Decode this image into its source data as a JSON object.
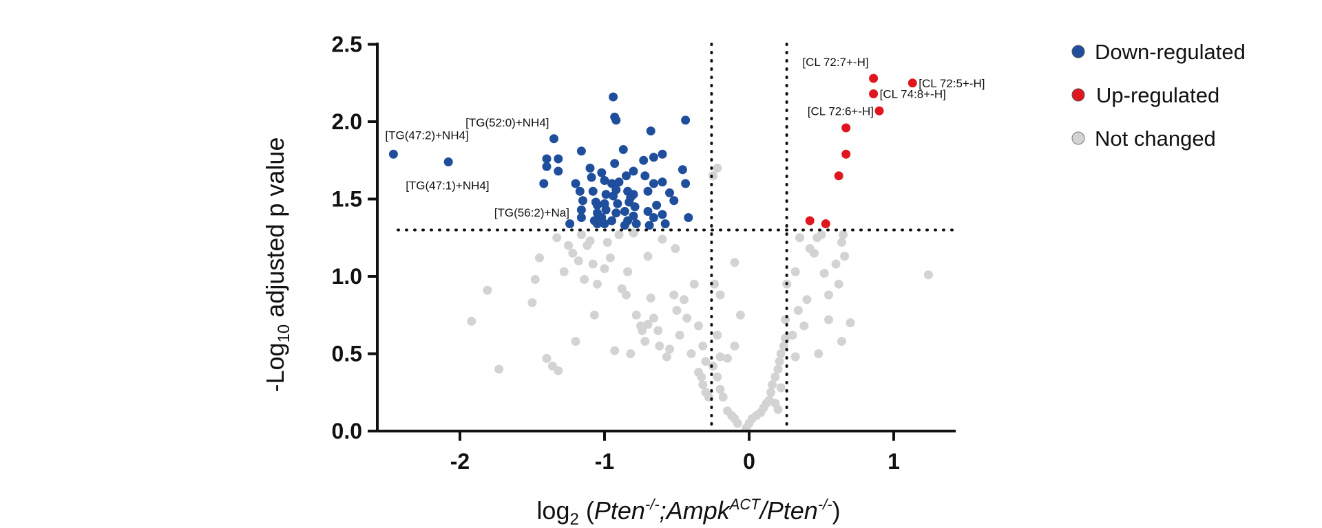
{
  "chart_data": {
    "type": "scatter",
    "xlabel": {
      "prefix": "log",
      "sub": "2",
      "open": " (",
      "gene1": "Pten",
      "gene1_sup": "-/-",
      "sep": ";",
      "gene2": "Ampk",
      "gene2_sup": "ACT",
      "slash": "/",
      "gene3": "Pten",
      "gene3_sup": "-/-",
      "close": ")"
    },
    "ylabel": {
      "prefix": "-Log",
      "sub": "10",
      "rest": " adjusted p value"
    },
    "xlim": [
      -2.6,
      1.4
    ],
    "ylim": [
      0,
      2.5
    ],
    "x_ticks": [
      -2,
      -1,
      0,
      1
    ],
    "x_tick_labels": [
      "-2",
      "-1",
      "0",
      "1"
    ],
    "y_ticks": [
      0.0,
      0.5,
      1.0,
      1.5,
      2.0,
      2.5
    ],
    "y_tick_labels": [
      "0.0",
      "0.5",
      "1.0",
      "1.5",
      "2.0",
      "2.5"
    ],
    "thresholds": {
      "x": [
        -0.26,
        0.26
      ],
      "y": 1.3
    },
    "grid": false,
    "legend_position": "top-right",
    "series": [
      {
        "name": "Down-regulated",
        "color": "#1f4e9c",
        "points": [
          [
            -2.46,
            1.79
          ],
          [
            -2.08,
            1.74
          ],
          [
            -1.35,
            1.89
          ],
          [
            -1.4,
            1.76
          ],
          [
            -1.32,
            1.76
          ],
          [
            -1.4,
            1.71
          ],
          [
            -1.32,
            1.68
          ],
          [
            -1.42,
            1.6
          ],
          [
            -1.16,
            1.81
          ],
          [
            -1.2,
            1.6
          ],
          [
            -1.17,
            1.55
          ],
          [
            -1.15,
            1.49
          ],
          [
            -1.16,
            1.43
          ],
          [
            -1.16,
            1.38
          ],
          [
            -1.24,
            1.34
          ],
          [
            -1.1,
            1.7
          ],
          [
            -1.09,
            1.64
          ],
          [
            -1.08,
            1.55
          ],
          [
            -1.06,
            1.48
          ],
          [
            -1.05,
            1.46
          ],
          [
            -1.05,
            1.41
          ],
          [
            -1.07,
            1.36
          ],
          [
            -1.05,
            1.34
          ],
          [
            -1.02,
            1.67
          ],
          [
            -1.0,
            1.62
          ],
          [
            -0.99,
            1.53
          ],
          [
            -1.0,
            1.47
          ],
          [
            -0.99,
            1.43
          ],
          [
            -1.02,
            1.38
          ],
          [
            -1.0,
            1.34
          ],
          [
            -0.94,
            2.16
          ],
          [
            -0.93,
            2.03
          ],
          [
            -0.92,
            2.01
          ],
          [
            -0.93,
            1.73
          ],
          [
            -0.95,
            1.6
          ],
          [
            -0.92,
            1.56
          ],
          [
            -0.94,
            1.52
          ],
          [
            -0.91,
            1.47
          ],
          [
            -0.92,
            1.41
          ],
          [
            -0.95,
            1.36
          ],
          [
            -0.9,
            1.61
          ],
          [
            -0.87,
            1.82
          ],
          [
            -0.85,
            1.65
          ],
          [
            -0.84,
            1.55
          ],
          [
            -0.82,
            1.51
          ],
          [
            -0.83,
            1.48
          ],
          [
            -0.86,
            1.42
          ],
          [
            -0.84,
            1.36
          ],
          [
            -0.86,
            1.33
          ],
          [
            -0.8,
            1.68
          ],
          [
            -0.8,
            1.53
          ],
          [
            -0.79,
            1.45
          ],
          [
            -0.8,
            1.39
          ],
          [
            -0.78,
            1.34
          ],
          [
            -0.72,
            1.65
          ],
          [
            -0.7,
            1.55
          ],
          [
            -0.7,
            1.42
          ],
          [
            -0.69,
            1.33
          ],
          [
            -0.73,
            1.75
          ],
          [
            -0.68,
            1.94
          ],
          [
            -0.66,
            1.77
          ],
          [
            -0.66,
            1.6
          ],
          [
            -0.64,
            1.46
          ],
          [
            -0.66,
            1.38
          ],
          [
            -0.6,
            1.79
          ],
          [
            -0.6,
            1.61
          ],
          [
            -0.6,
            1.4
          ],
          [
            -0.58,
            1.34
          ],
          [
            -0.55,
            1.54
          ],
          [
            -0.52,
            1.49
          ],
          [
            -0.44,
            2.01
          ],
          [
            -0.46,
            1.69
          ],
          [
            -0.44,
            1.6
          ],
          [
            -0.42,
            1.38
          ]
        ]
      },
      {
        "name": "Up-regulated",
        "color": "#e0161e",
        "points": [
          [
            0.42,
            1.36
          ],
          [
            0.53,
            1.34
          ],
          [
            0.62,
            1.65
          ],
          [
            0.67,
            1.79
          ],
          [
            0.67,
            1.96
          ],
          [
            0.9,
            2.07
          ],
          [
            0.86,
            2.18
          ],
          [
            0.86,
            2.28
          ],
          [
            1.13,
            2.25
          ]
        ]
      },
      {
        "name": "Not changed",
        "color": "#d3d3d3",
        "points": [
          [
            -1.92,
            0.71
          ],
          [
            -1.81,
            0.91
          ],
          [
            -1.73,
            0.4
          ],
          [
            -1.5,
            0.83
          ],
          [
            -1.48,
            0.98
          ],
          [
            -1.45,
            1.12
          ],
          [
            -1.4,
            0.47
          ],
          [
            -1.36,
            0.42
          ],
          [
            -1.32,
            0.39
          ],
          [
            -1.33,
            1.25
          ],
          [
            -1.28,
            1.03
          ],
          [
            -1.25,
            1.2
          ],
          [
            -1.22,
            1.15
          ],
          [
            -1.2,
            0.58
          ],
          [
            -1.18,
            1.1
          ],
          [
            -1.16,
            1.27
          ],
          [
            -1.14,
            0.98
          ],
          [
            -1.12,
            1.2
          ],
          [
            -1.1,
            1.23
          ],
          [
            -1.08,
            1.08
          ],
          [
            -1.07,
            0.75
          ],
          [
            -1.05,
            0.95
          ],
          [
            -1.0,
            1.05
          ],
          [
            -0.98,
            1.22
          ],
          [
            -0.96,
            1.12
          ],
          [
            -0.93,
            0.52
          ],
          [
            -0.9,
            1.27
          ],
          [
            -0.88,
            0.92
          ],
          [
            -0.85,
            0.88
          ],
          [
            -0.84,
            1.03
          ],
          [
            -0.82,
            0.5
          ],
          [
            -0.8,
            1.28
          ],
          [
            -0.78,
            0.75
          ],
          [
            -0.75,
            0.68
          ],
          [
            -0.74,
            0.65
          ],
          [
            -0.72,
            0.58
          ],
          [
            -0.7,
            0.69
          ],
          [
            -0.7,
            1.13
          ],
          [
            -0.68,
            0.86
          ],
          [
            -0.66,
            0.73
          ],
          [
            -0.63,
            0.65
          ],
          [
            -0.62,
            0.55
          ],
          [
            -0.6,
            1.24
          ],
          [
            -0.57,
            0.48
          ],
          [
            -0.55,
            0.53
          ],
          [
            -0.52,
            0.88
          ],
          [
            -0.51,
            1.18
          ],
          [
            -0.5,
            0.78
          ],
          [
            -0.48,
            0.62
          ],
          [
            -0.45,
            0.85
          ],
          [
            -0.43,
            0.73
          ],
          [
            -0.4,
            0.5
          ],
          [
            -0.38,
            0.95
          ],
          [
            -0.35,
            0.68
          ],
          [
            -0.32,
            0.55
          ],
          [
            -0.3,
            0.45
          ],
          [
            -0.35,
            0.38
          ],
          [
            -0.33,
            0.35
          ],
          [
            -0.32,
            0.3
          ],
          [
            -0.3,
            0.25
          ],
          [
            -0.28,
            0.22
          ],
          [
            -0.25,
            0.42
          ],
          [
            -0.22,
            0.35
          ],
          [
            -0.2,
            0.27
          ],
          [
            -0.18,
            0.22
          ],
          [
            -0.15,
            0.13
          ],
          [
            -0.12,
            0.1
          ],
          [
            -0.1,
            0.08
          ],
          [
            -0.1,
            1.09
          ],
          [
            -0.1,
            0.55
          ],
          [
            -0.08,
            0.05
          ],
          [
            -0.06,
            0.75
          ],
          [
            -0.2,
            0.48
          ],
          [
            -0.22,
            0.62
          ],
          [
            -0.24,
            0.95
          ],
          [
            -0.22,
            1.7
          ],
          [
            -0.25,
            1.65
          ],
          [
            -0.2,
            0.88
          ],
          [
            -0.15,
            0.47
          ],
          [
            -0.02,
            0.02
          ],
          [
            0.0,
            0.05
          ],
          [
            0.02,
            0.08
          ],
          [
            0.05,
            0.1
          ],
          [
            0.08,
            0.12
          ],
          [
            0.1,
            0.15
          ],
          [
            0.12,
            0.18
          ],
          [
            0.14,
            0.2
          ],
          [
            0.15,
            0.25
          ],
          [
            0.16,
            0.3
          ],
          [
            0.18,
            0.35
          ],
          [
            0.2,
            0.4
          ],
          [
            0.21,
            0.45
          ],
          [
            0.22,
            0.5
          ],
          [
            0.24,
            0.55
          ],
          [
            0.25,
            0.6
          ],
          [
            0.2,
            0.14
          ],
          [
            0.18,
            0.18
          ],
          [
            0.22,
            0.28
          ],
          [
            0.25,
            0.72
          ],
          [
            0.26,
            0.95
          ],
          [
            0.3,
            0.62
          ],
          [
            0.32,
            0.48
          ],
          [
            0.32,
            1.03
          ],
          [
            0.34,
            0.78
          ],
          [
            0.38,
            0.68
          ],
          [
            0.4,
            0.85
          ],
          [
            0.42,
            1.18
          ],
          [
            0.45,
            1.15
          ],
          [
            0.47,
            1.25
          ],
          [
            0.48,
            0.5
          ],
          [
            0.5,
            1.27
          ],
          [
            0.52,
            1.02
          ],
          [
            0.55,
            0.72
          ],
          [
            0.55,
            0.88
          ],
          [
            0.6,
            1.08
          ],
          [
            0.62,
            0.95
          ],
          [
            0.64,
            0.58
          ],
          [
            0.66,
            1.13
          ],
          [
            0.7,
            0.7
          ],
          [
            0.64,
            1.22
          ],
          [
            0.65,
            1.27
          ],
          [
            0.35,
            1.25
          ],
          [
            1.24,
            1.01
          ]
        ]
      }
    ],
    "annotations": [
      {
        "text": "[TG(47:2)+NH4]",
        "x": -2.46,
        "y": 1.79,
        "anchor": "above"
      },
      {
        "text": "[TG(47:1)+NH4]",
        "x": -2.08,
        "y": 1.74,
        "anchor": "below"
      },
      {
        "text": "[TG(52:0)+NH4]",
        "x": -1.35,
        "y": 1.89,
        "anchor": "above-left"
      },
      {
        "text": "[TG(56:2)+Na]",
        "x": -1.42,
        "y": 1.6,
        "anchor": "below-left"
      },
      {
        "text": "[CL 72:7+-H]",
        "x": 0.86,
        "y": 2.28,
        "anchor": "above-left"
      },
      {
        "text": "[CL 72:5+-H]",
        "x": 1.13,
        "y": 2.25,
        "anchor": "right"
      },
      {
        "text": "[CL 74:8+-H]",
        "x": 0.86,
        "y": 2.18,
        "anchor": "right"
      },
      {
        "text": "[CL 72:6+-H]",
        "x": 0.9,
        "y": 2.07,
        "anchor": "left"
      }
    ]
  },
  "legend": [
    {
      "label": "Down-regulated",
      "color": "#1f4e9c"
    },
    {
      "label": "Up-regulated",
      "color": "#e0161e"
    },
    {
      "label": "Not changed",
      "color": "#d3d3d3"
    }
  ]
}
